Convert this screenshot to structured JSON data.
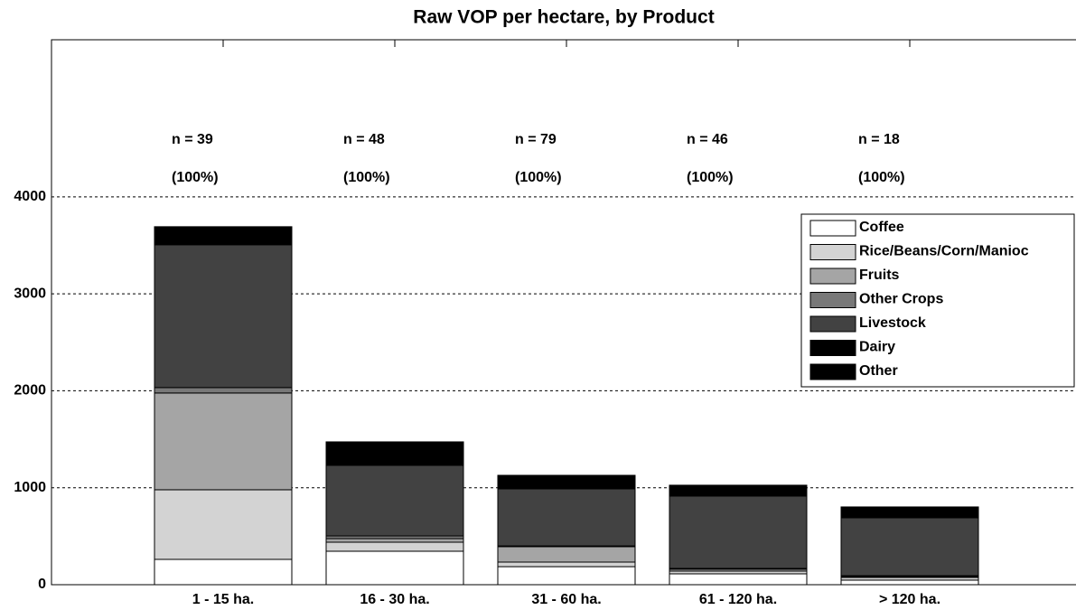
{
  "chart_data": {
    "type": "stacked_bar",
    "title": "Raw VOP per hectare, by Product",
    "categories": [
      "1 - 15 ha.",
      "16 - 30 ha.",
      "31 - 60 ha.",
      "61 - 120 ha.",
      "> 120 ha."
    ],
    "series": [
      {
        "name": "Coffee",
        "color": "#ffffff",
        "values": [
          261,
          345,
          186,
          112,
          47
        ]
      },
      {
        "name": "Rice/Beans/Corn/Manioc",
        "color": "#d3d3d3",
        "values": [
          718,
          93,
          47,
          28,
          28
        ]
      },
      {
        "name": "Fruits",
        "color": "#a5a5a5",
        "values": [
          998,
          37,
          159,
          19,
          9
        ]
      },
      {
        "name": "Other Crops",
        "color": "#787878",
        "values": [
          56,
          28,
          8,
          9,
          9
        ]
      },
      {
        "name": "Livestock",
        "color": "#424242",
        "values": [
          1473,
          728,
          588,
          746,
          597
        ]
      },
      {
        "name": "Dairy",
        "color": "#000000",
        "values": [
          176,
          232,
          130,
          102,
          102
        ]
      },
      {
        "name": "Other",
        "color": "#000000",
        "values": [
          10,
          10,
          10,
          10,
          10
        ]
      }
    ],
    "annotations": [
      {
        "n": "n = 39",
        "pct": "(100%)"
      },
      {
        "n": "n = 48",
        "pct": "(100%)"
      },
      {
        "n": "n = 79",
        "pct": "(100%)"
      },
      {
        "n": "n = 46",
        "pct": "(100%)"
      },
      {
        "n": "n = 18",
        "pct": "(100%)"
      }
    ],
    "ylim": [
      0,
      5620
    ],
    "yticks": [
      0,
      1000,
      2000,
      3000,
      4000
    ],
    "grid": true,
    "legend": "upper right"
  }
}
